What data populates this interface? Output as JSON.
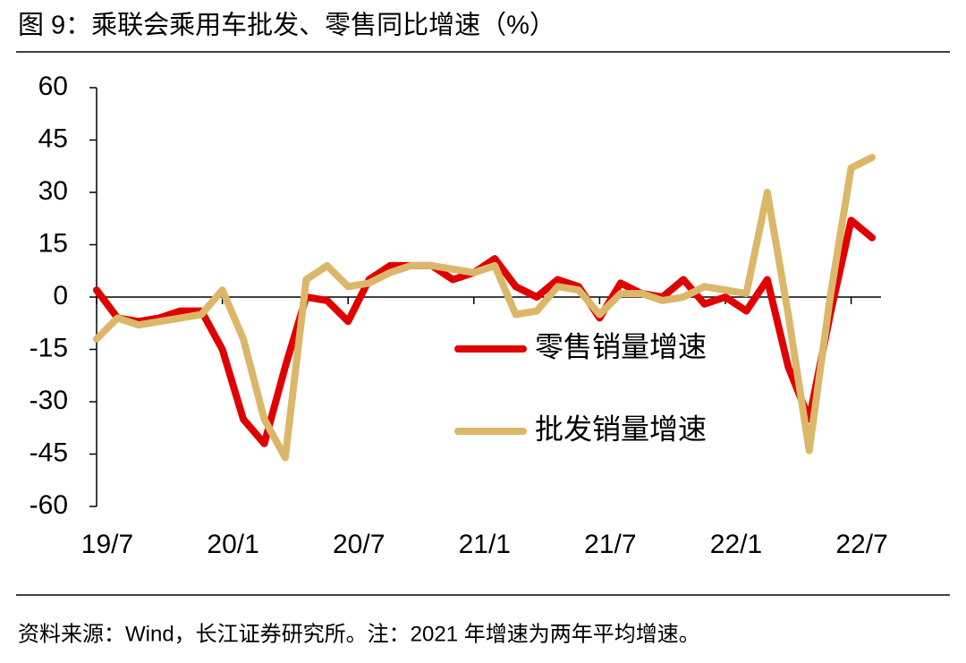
{
  "title": "图 9：乘联会乘用车批发、零售同比增速（%）",
  "footer": "资料来源：Wind，长江证券研究所。注：2021 年增速为两年平均增速。",
  "chart_data": {
    "type": "line",
    "categories": [
      "19/7",
      null,
      null,
      null,
      null,
      null,
      "20/1",
      null,
      null,
      null,
      null,
      null,
      "20/7",
      null,
      null,
      null,
      null,
      null,
      "21/1",
      null,
      null,
      null,
      null,
      null,
      "21/7",
      null,
      null,
      null,
      null,
      null,
      "22/1",
      null,
      null,
      null,
      null,
      null,
      "22/7",
      null
    ],
    "series": [
      {
        "name": "零售销量增速",
        "color": "#e00000",
        "values": [
          2,
          -6,
          -7,
          -6,
          -4,
          -4,
          -15,
          -35,
          -42,
          -20,
          0,
          -1,
          -7,
          5,
          9,
          9,
          9,
          5,
          7,
          11,
          3,
          0,
          5,
          3,
          -6,
          4,
          1,
          0,
          5,
          -2,
          0,
          -4,
          5,
          -20,
          -35,
          -5,
          22,
          17
        ]
      },
      {
        "name": "批发销量增速",
        "color": "#dbb76a",
        "values": [
          -12,
          -6,
          -8,
          -7,
          -6,
          -5,
          2,
          -12,
          -35,
          -46,
          5,
          9,
          3,
          4,
          7,
          9,
          9,
          8,
          7,
          9,
          -5,
          -4,
          3,
          2,
          -5,
          1,
          1,
          -1,
          0,
          3,
          2,
          1,
          30,
          -5,
          -44,
          0,
          37,
          40
        ]
      }
    ],
    "ylim": [
      -60,
      60
    ],
    "yticks": [
      -60,
      -45,
      -30,
      -15,
      0,
      15,
      30,
      45,
      60
    ]
  }
}
